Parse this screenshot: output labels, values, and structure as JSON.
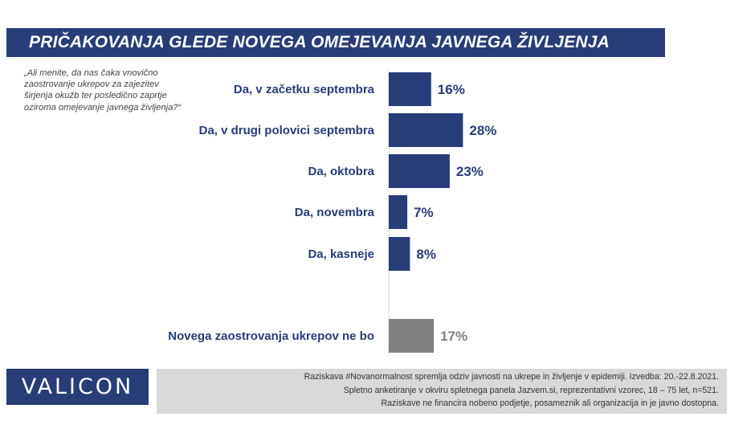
{
  "header": {
    "title": "PRIČAKOVANJA GLEDE NOVEGA OMEJEVANJA JAVNEGA ŽIVLJENJA"
  },
  "question": "„Ali menite, da nas čaka vnovično zaostrovanje ukrepov za zajezitev širjenja okužb ter posledično zaprtje oziroma omejevanje javnega življenja?“",
  "chart_data": {
    "type": "bar",
    "orientation": "horizontal",
    "categories": [
      "Da, v začetku septembra",
      "Da, v drugi polovici septembra",
      "Da, oktobra",
      "Da, novembra",
      "Da, kasneje",
      "Novega zaostrovanja ukrepov ne bo"
    ],
    "values": [
      16,
      28,
      23,
      7,
      8,
      17
    ],
    "value_labels": [
      "16%",
      "28%",
      "23%",
      "7%",
      "8%",
      "17%"
    ],
    "unit": "%",
    "bar_colors": [
      "#283c78",
      "#283c78",
      "#283c78",
      "#283c78",
      "#283c78",
      "#808080"
    ],
    "label_colors": [
      "#283c78",
      "#283c78",
      "#283c78",
      "#283c78",
      "#283c78",
      "#7f7f7f"
    ],
    "xlim": [
      0,
      100
    ],
    "grid": false,
    "legend": "none"
  },
  "footer": {
    "logo": "VALICON",
    "note_lines": [
      "Raziskava #Novanormalnost spremlja odziv javnosti na ukrepe in življenje v epidemiji. Izvedba: 20.-22.8.2021.",
      "Spletno anketiranje v okviru spletnega panela Jazvem.si, reprezentativni vzorec, 18 – 75 let, n=521.",
      "Raziskave ne financira nobeno podjetje, posameznik ali organizacija in je javno dostopna."
    ]
  },
  "colors": {
    "brand_navy": "#283c78",
    "neutral_gray": "#808080",
    "footer_bg": "#d9d9d9"
  }
}
